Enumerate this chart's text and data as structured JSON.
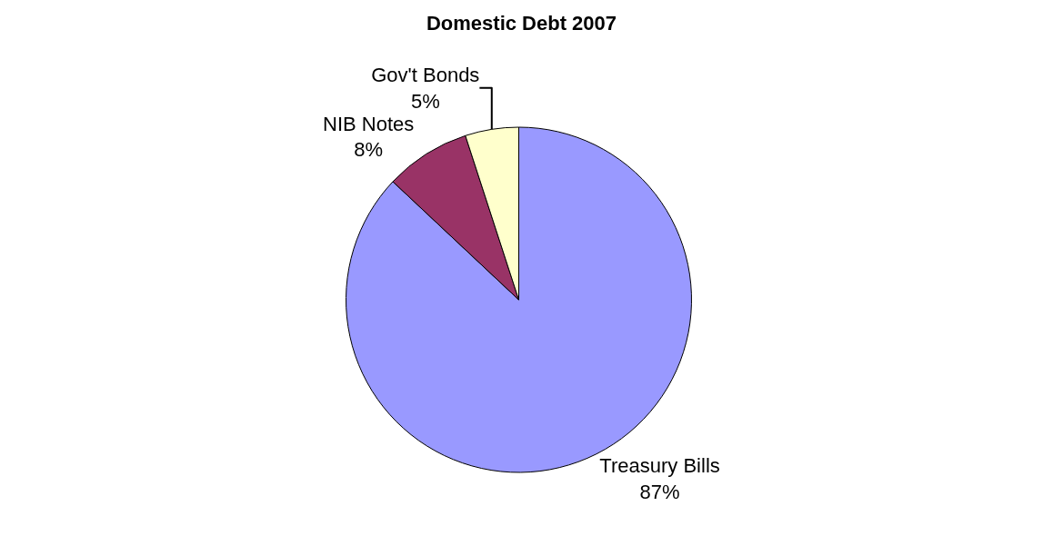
{
  "chart_data": {
    "type": "pie",
    "title": "Domestic Debt 2007",
    "categories": [
      "Treasury Bills",
      "NIB Notes",
      "Gov't Bonds"
    ],
    "values": [
      87,
      8,
      5
    ],
    "value_labels": [
      "87%",
      "8%",
      "5%"
    ],
    "colors": [
      "#9999ff",
      "#993366",
      "#ffffcc"
    ],
    "legend": false
  }
}
